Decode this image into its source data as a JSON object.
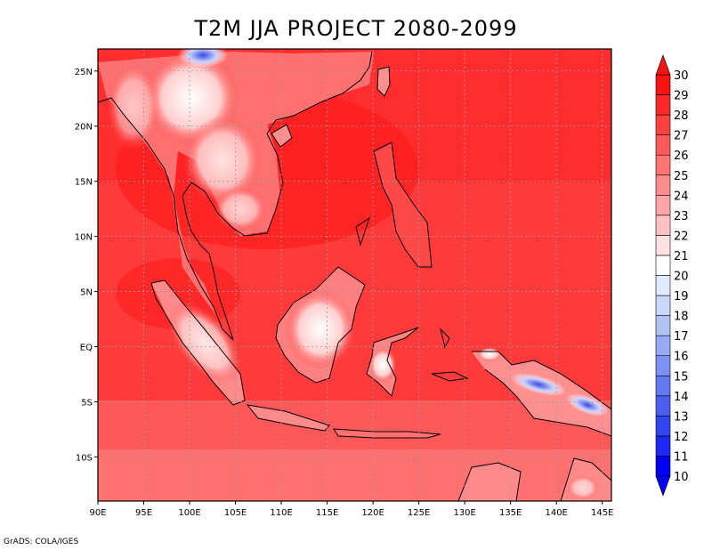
{
  "title": "T2M JJA PROJECT 2080-2099",
  "footer": "GrADS: COLA/IGES",
  "map": {
    "lon_range": [
      90,
      146
    ],
    "lat_range": [
      -14,
      27
    ],
    "x_ticks": [
      "90E",
      "95E",
      "100E",
      "105E",
      "110E",
      "115E",
      "120E",
      "125E",
      "130E",
      "135E",
      "140E",
      "145E"
    ],
    "y_ticks": [
      "25N",
      "20N",
      "15N",
      "10N",
      "5N",
      "EQ",
      "5S",
      "10S"
    ],
    "gridlines": true,
    "variable": "T2M"
  },
  "colorbar": {
    "levels": [
      "10",
      "11",
      "12",
      "13",
      "14",
      "15",
      "16",
      "17",
      "18",
      "19",
      "20",
      "21",
      "22",
      "23",
      "24",
      "25",
      "26",
      "27",
      "28",
      "29",
      "30"
    ],
    "colors": [
      "#0000f5",
      "#1e28f5",
      "#3246f0",
      "#4b5ff0",
      "#6478f0",
      "#7d91f0",
      "#96aaf5",
      "#afc3f5",
      "#c8d7fa",
      "#e1ebff",
      "#ffffff",
      "#ffe1e1",
      "#ffc3c3",
      "#ffa5a5",
      "#ff8c8c",
      "#ff7373",
      "#ff5a5a",
      "#ff4141",
      "#fa2828",
      "#f51414"
    ]
  }
}
